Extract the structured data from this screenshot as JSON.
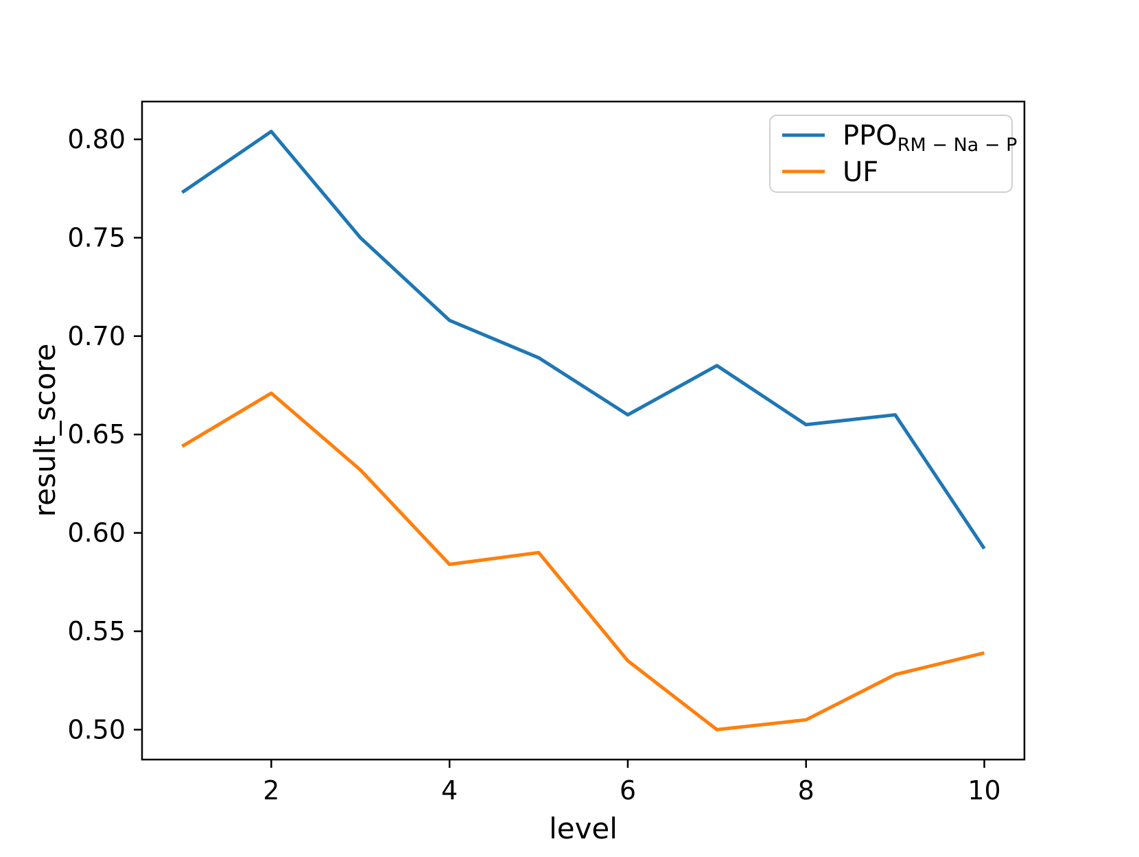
{
  "chart_data": {
    "type": "line",
    "title": "",
    "xlabel": "level",
    "ylabel": "result_score",
    "x": [
      1,
      2,
      3,
      4,
      5,
      6,
      7,
      8,
      9,
      10
    ],
    "series": [
      {
        "name": "PPO_RM-Na-P",
        "label_main": "PPO",
        "label_sub": "RM − Na − P",
        "color": "#1f77b4",
        "values": [
          0.773,
          0.804,
          0.75,
          0.708,
          0.689,
          0.66,
          0.685,
          0.655,
          0.66,
          0.592
        ]
      },
      {
        "name": "UF",
        "label_main": "UF",
        "label_sub": "",
        "color": "#ff7f0e",
        "values": [
          0.644,
          0.671,
          0.632,
          0.584,
          0.59,
          0.535,
          0.5,
          0.505,
          0.528,
          0.539
        ]
      }
    ],
    "xticks": [
      2,
      4,
      6,
      8,
      10
    ],
    "yticks": [
      0.5,
      0.55,
      0.6,
      0.65,
      0.7,
      0.75,
      0.8
    ],
    "xlim": [
      0.55,
      10.45
    ],
    "ylim": [
      0.4848,
      0.8192
    ],
    "grid": false,
    "legend_position": "upper right",
    "frame_color": "#000000",
    "legend_border_color": "#d0d0d0"
  }
}
